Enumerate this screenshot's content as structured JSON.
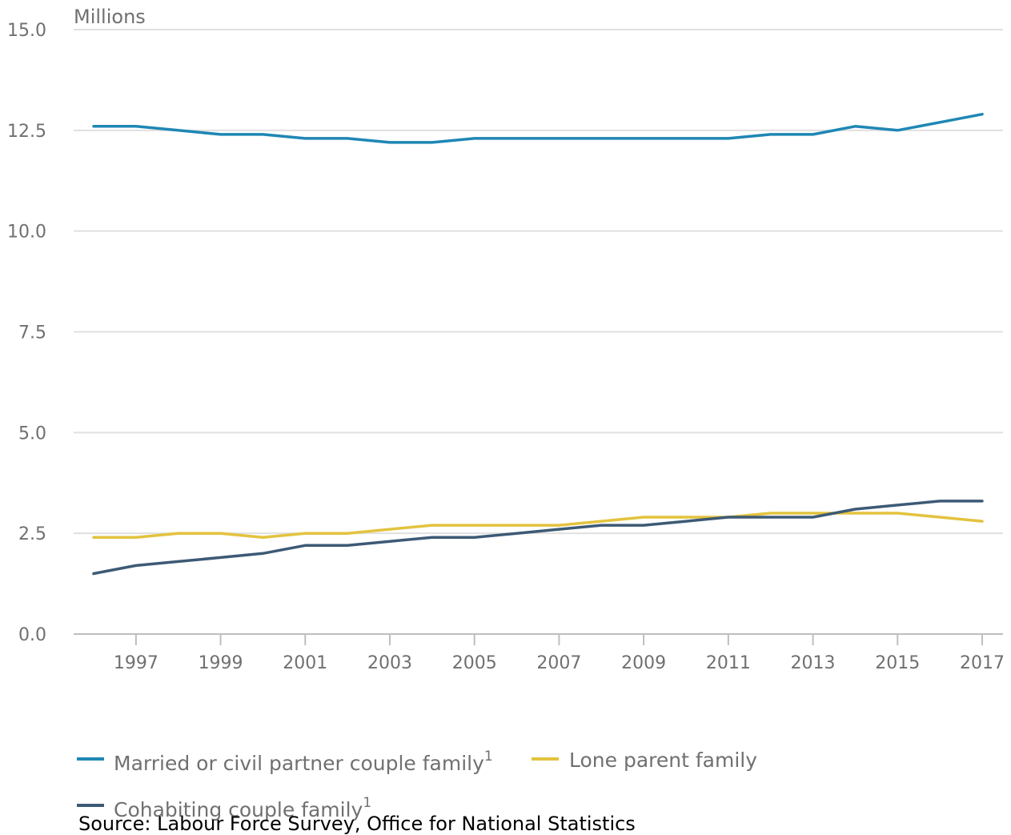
{
  "chart_data": {
    "type": "line",
    "ylabel": "Millions",
    "ylim": [
      0,
      15
    ],
    "yticks": [
      "0.0",
      "2.5",
      "5.0",
      "7.5",
      "10.0",
      "12.5",
      "15.0"
    ],
    "yticks_values": [
      0,
      2.5,
      5,
      7.5,
      10,
      12.5,
      15
    ],
    "x": [
      1996,
      1997,
      1998,
      1999,
      2000,
      2001,
      2002,
      2003,
      2004,
      2005,
      2006,
      2007,
      2008,
      2009,
      2010,
      2011,
      2012,
      2013,
      2014,
      2015,
      2016,
      2017
    ],
    "xticks": [
      "1997",
      "1999",
      "2001",
      "2003",
      "2005",
      "2007",
      "2009",
      "2011",
      "2013",
      "2015",
      "2017"
    ],
    "xticks_values": [
      1997,
      1999,
      2001,
      2003,
      2005,
      2007,
      2009,
      2011,
      2013,
      2015,
      2017
    ],
    "grid": true,
    "legend_position": "bottom",
    "series": [
      {
        "name": "Married or civil partner couple family",
        "note": "1",
        "color": "#206095",
        "values": [
          12.6,
          12.6,
          12.5,
          12.4,
          12.4,
          12.3,
          12.3,
          12.2,
          12.2,
          12.3,
          12.3,
          12.3,
          12.3,
          12.3,
          12.3,
          12.3,
          12.4,
          12.4,
          12.6,
          12.5,
          12.7,
          12.9
        ]
      },
      {
        "name": "Lone parent family",
        "note": "",
        "color": "#e2bd39",
        "values": [
          2.4,
          2.4,
          2.5,
          2.5,
          2.4,
          2.5,
          2.5,
          2.6,
          2.7,
          2.7,
          2.7,
          2.7,
          2.8,
          2.9,
          2.9,
          2.9,
          3.0,
          3.0,
          3.0,
          3.0,
          2.9,
          2.8
        ]
      },
      {
        "name": "Cohabiting couple family",
        "note": "1",
        "color": "#3c5a76",
        "values": [
          1.5,
          1.7,
          1.8,
          1.9,
          2.0,
          2.2,
          2.2,
          2.3,
          2.4,
          2.4,
          2.5,
          2.6,
          2.7,
          2.7,
          2.8,
          2.9,
          2.9,
          2.9,
          3.1,
          3.2,
          3.3,
          3.3
        ]
      }
    ],
    "source": "Source: Labour Force Survey, Office for National Statistics"
  },
  "colors": {
    "gridline": "#e0e0e0",
    "axis": "#bebebe",
    "tick_text": "#707071",
    "series_married": "#1f87b5",
    "series_lone": "#e3c33f",
    "series_cohabiting": "#3d5a75"
  }
}
